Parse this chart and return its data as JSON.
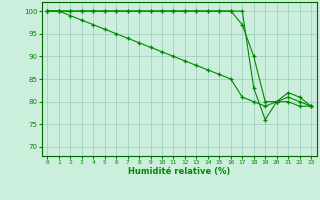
{
  "title": "",
  "xlabel": "Humidité relative (%)",
  "ylabel": "",
  "xlim": [
    -0.5,
    23.5
  ],
  "ylim": [
    68,
    102
  ],
  "yticks": [
    70,
    75,
    80,
    85,
    90,
    95,
    100
  ],
  "xticks": [
    0,
    1,
    2,
    3,
    4,
    5,
    6,
    7,
    8,
    9,
    10,
    11,
    12,
    13,
    14,
    15,
    16,
    17,
    18,
    19,
    20,
    21,
    22,
    23
  ],
  "bg_color": "#cceedd",
  "grid_color": "#99ccbb",
  "line_color": "#008800",
  "line1": [
    100,
    100,
    100,
    100,
    100,
    100,
    100,
    100,
    100,
    100,
    100,
    100,
    100,
    100,
    100,
    100,
    100,
    97,
    90,
    80,
    80,
    81,
    80,
    79
  ],
  "line2": [
    100,
    100,
    99,
    98,
    97,
    96,
    95,
    94,
    93,
    92,
    91,
    90,
    89,
    88,
    87,
    86,
    85,
    81,
    80,
    79,
    80,
    82,
    81,
    79
  ],
  "line3": [
    100,
    100,
    100,
    100,
    100,
    100,
    100,
    100,
    100,
    100,
    100,
    100,
    100,
    100,
    100,
    100,
    100,
    100,
    83,
    76,
    80,
    80,
    79,
    79
  ]
}
